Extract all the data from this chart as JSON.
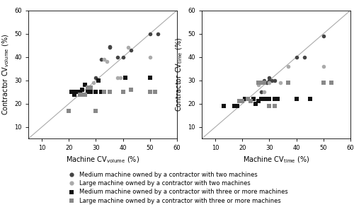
{
  "left_plot": {
    "xlabel": "Machine CV$_\\mathrm{volume}$ (%)",
    "ylabel": "Contractor CV$_\\mathrm{volume}$ (%)",
    "xlim": [
      5,
      60
    ],
    "ylim": [
      5,
      60
    ],
    "xticks": [
      10,
      20,
      30,
      40,
      50,
      60
    ],
    "yticks": [
      10,
      20,
      30,
      40,
      50,
      60
    ],
    "medium_two": [
      [
        30,
        31
      ],
      [
        32,
        39
      ],
      [
        35,
        44
      ],
      [
        35,
        44.5
      ],
      [
        38,
        40
      ],
      [
        40,
        40
      ],
      [
        43,
        43
      ],
      [
        50,
        50
      ],
      [
        53,
        50
      ]
    ],
    "large_two": [
      [
        29,
        29
      ],
      [
        33,
        39
      ],
      [
        34,
        38
      ],
      [
        38,
        31
      ],
      [
        39,
        31
      ],
      [
        42,
        44
      ],
      [
        50,
        40
      ]
    ],
    "medium_more": [
      [
        21,
        25
      ],
      [
        22,
        24
      ],
      [
        22,
        25
      ],
      [
        23,
        25
      ],
      [
        24,
        25
      ],
      [
        25,
        26
      ],
      [
        26,
        28
      ],
      [
        27,
        25
      ],
      [
        27,
        26
      ],
      [
        28,
        25
      ],
      [
        28,
        26
      ],
      [
        30,
        25
      ],
      [
        31,
        30
      ],
      [
        32,
        25
      ],
      [
        35,
        25
      ],
      [
        40,
        25
      ],
      [
        41,
        31
      ],
      [
        50,
        31
      ]
    ],
    "large_more": [
      [
        20,
        17
      ],
      [
        24,
        24
      ],
      [
        25,
        24
      ],
      [
        26,
        24
      ],
      [
        27,
        27
      ],
      [
        28,
        27
      ],
      [
        30,
        17
      ],
      [
        33,
        25
      ],
      [
        35,
        25
      ],
      [
        40,
        25
      ],
      [
        43,
        26
      ],
      [
        50,
        25
      ],
      [
        52,
        25
      ]
    ]
  },
  "right_plot": {
    "xlabel": "Machine CV$_\\mathrm{time}$ (%)",
    "ylabel": "Contractor CV$_\\mathrm{time}$ (%)",
    "xlim": [
      5,
      60
    ],
    "ylim": [
      5,
      60
    ],
    "xticks": [
      10,
      20,
      30,
      40,
      50,
      60
    ],
    "yticks": [
      10,
      20,
      30,
      40,
      50,
      60
    ],
    "medium_two": [
      [
        27,
        25
      ],
      [
        28,
        30
      ],
      [
        29,
        29
      ],
      [
        30,
        30
      ],
      [
        30,
        31
      ],
      [
        31,
        30
      ],
      [
        32,
        30
      ],
      [
        40,
        40
      ],
      [
        43,
        40
      ],
      [
        50,
        49
      ]
    ],
    "large_two": [
      [
        26,
        28
      ],
      [
        28,
        25
      ],
      [
        30,
        29
      ],
      [
        34,
        29
      ],
      [
        37,
        36
      ],
      [
        50,
        36
      ]
    ],
    "medium_more": [
      [
        13,
        19
      ],
      [
        17,
        19
      ],
      [
        18,
        19
      ],
      [
        19,
        21
      ],
      [
        20,
        21
      ],
      [
        21,
        22
      ],
      [
        22,
        22
      ],
      [
        24,
        22
      ],
      [
        25,
        20
      ],
      [
        26,
        21
      ],
      [
        27,
        22
      ],
      [
        28,
        22
      ],
      [
        29,
        22
      ],
      [
        30,
        22
      ],
      [
        32,
        22
      ],
      [
        33,
        22
      ],
      [
        40,
        22
      ],
      [
        45,
        22
      ]
    ],
    "large_more": [
      [
        19,
        21
      ],
      [
        20,
        21
      ],
      [
        22,
        22
      ],
      [
        23,
        21
      ],
      [
        26,
        29
      ],
      [
        27,
        29
      ],
      [
        28,
        29
      ],
      [
        30,
        19
      ],
      [
        32,
        19
      ],
      [
        37,
        29
      ],
      [
        50,
        29
      ],
      [
        53,
        29
      ]
    ]
  },
  "color_medium_two": "#444444",
  "color_large_two": "#aaaaaa",
  "color_medium_more": "#111111",
  "color_large_more": "#888888",
  "marker_circle": "o",
  "marker_square": "s",
  "markersize_circle": 4,
  "markersize_square": 4,
  "legend_labels": [
    "Medium machine owned by a contractor with two machines",
    "Large machine owned by a contractor with two machines",
    "Medium machine owned by a contractor with three or more machines",
    "Large machine owned by a contractor with three or more machines"
  ],
  "diag_color": "#aaaaaa",
  "tick_fontsize": 6,
  "label_fontsize": 7
}
